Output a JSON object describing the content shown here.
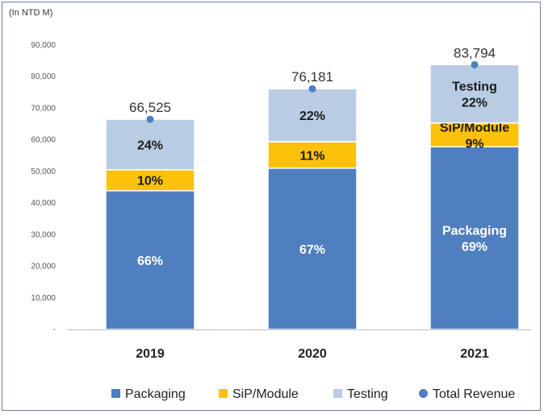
{
  "chart_data": {
    "type": "bar",
    "stacked": true,
    "unit_label": "(In NTD M)",
    "categories": [
      "2019",
      "2020",
      "2021"
    ],
    "ylim": [
      0,
      90000
    ],
    "yticks": [
      {
        "value": 0,
        "label": "-"
      },
      {
        "value": 10000,
        "label": "10,000"
      },
      {
        "value": 20000,
        "label": "20,000"
      },
      {
        "value": 30000,
        "label": "30,000"
      },
      {
        "value": 40000,
        "label": "40,000"
      },
      {
        "value": 50000,
        "label": "50,000"
      },
      {
        "value": 60000,
        "label": "60,000"
      },
      {
        "value": 70000,
        "label": "70,000"
      },
      {
        "value": 80000,
        "label": "80,000"
      },
      {
        "value": 90000,
        "label": "90,000"
      }
    ],
    "grid": false,
    "legend_position": "bottom",
    "series": [
      {
        "name": "Packaging",
        "color": "#4f7fbf",
        "text_color": "#ffffff",
        "values": [
          43907,
          51041,
          57818
        ],
        "labels": [
          "66%",
          "67%",
          "69%"
        ],
        "segment_labels": [
          "",
          "",
          "Packaging"
        ]
      },
      {
        "name": "SiP/Module",
        "color": "#fcc20a",
        "text_color": "#1a1a1a",
        "values": [
          6653,
          8380,
          7541
        ],
        "labels": [
          "10%",
          "11%",
          "9%"
        ],
        "segment_labels": [
          "",
          "",
          "SiP/Module"
        ]
      },
      {
        "name": "Testing",
        "color": "#b8cce4",
        "text_color": "#1a1a1a",
        "values": [
          15965,
          16760,
          18435
        ],
        "labels": [
          "24%",
          "22%",
          "22%"
        ],
        "segment_labels": [
          "",
          "",
          "Testing"
        ]
      }
    ],
    "total": {
      "name": "Total Revenue",
      "color": "#4f7fbf",
      "values": [
        66525,
        76181,
        83794
      ],
      "labels": [
        "66,525",
        "76,181",
        "83,794"
      ]
    }
  }
}
